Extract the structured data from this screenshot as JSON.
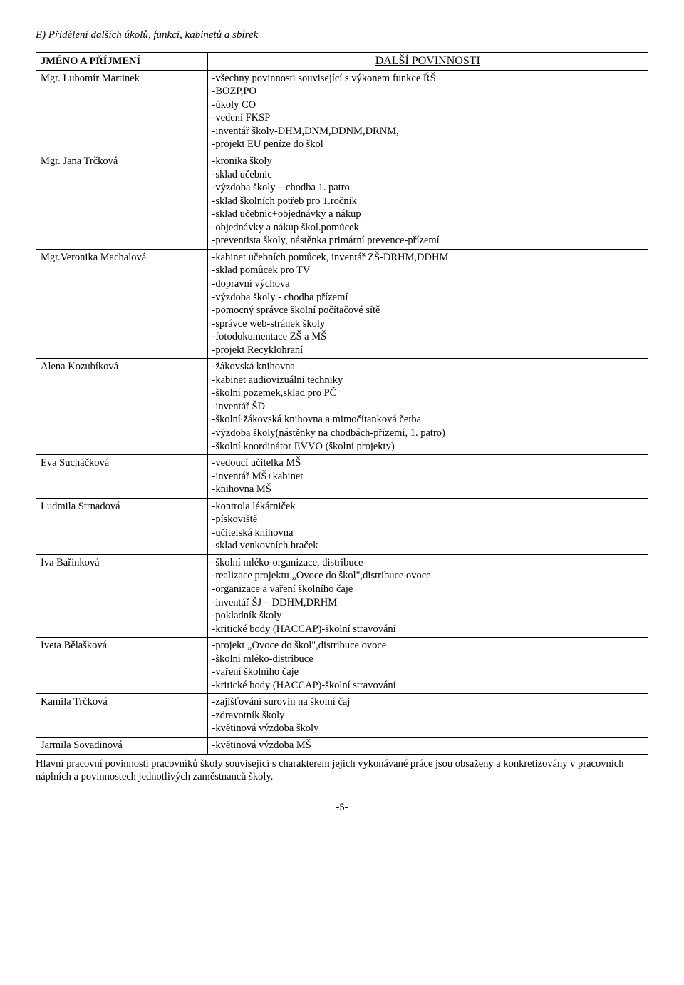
{
  "section_title": "E) Přidělení dalších úkolů, funkcí, kabinetů a sbírek",
  "columns": {
    "name": "JMÉNO A PŘÍJMENÍ",
    "duties": "DALŠÍ POVINNOSTI"
  },
  "rows": [
    {
      "name": "Mgr. Lubomír Martinek",
      "duties": [
        "-všechny povinnosti související s výkonem funkce ŘŠ",
        "-BOZP,PO",
        "-úkoly CO",
        "-vedení FKSP",
        "-inventář školy-DHM,DNM,DDNM,DRNM,",
        "-projekt EU peníze do škol"
      ]
    },
    {
      "name": "Mgr. Jana Trčková",
      "duties": [
        "-kronika školy",
        "-sklad učebnic",
        "-výzdoba školy – chodba 1. patro",
        "-sklad školních potřeb pro 1.ročník",
        "-sklad učebnic+objednávky a nákup",
        "-objednávky a nákup škol.pomůcek",
        "-preventista školy, nástěnka primární prevence-přízemí"
      ]
    },
    {
      "name": "Mgr.Veronika Machalová",
      "duties": [
        "-kabinet učebních pomůcek, inventář ZŠ-DRHM,DDHM",
        "-sklad pomůcek pro TV",
        "-dopravní výchova",
        "-výzdoba školy - chodba přízemí",
        "-pomocný správce školní počítačové sítě",
        "-správce web-stránek školy",
        "-fotodokumentace ZŠ a MŠ",
        "-projekt Recyklohraní"
      ]
    },
    {
      "name": "Alena Kozubíková",
      "duties": [
        "-žákovská knihovna",
        "-kabinet audiovizuální techniky",
        "-školní pozemek,sklad pro PČ",
        "-inventář ŠD",
        "-školní žákovská knihovna a mimočítanková četba",
        "-výzdoba školy(nástěnky na chodbách-přízemí, 1. patro)",
        "-školní koordinátor EVVO (školní projekty)"
      ]
    },
    {
      "name": "Eva Sucháčková",
      "duties": [
        "-vedoucí učitelka MŠ",
        "-inventář MŠ+kabinet",
        "-knihovna MŠ"
      ]
    },
    {
      "name": "Ludmila Strnadová",
      "duties": [
        "-kontrola lékárniček",
        "-pískoviště",
        "-učitelská knihovna",
        "-sklad venkovních hraček"
      ]
    },
    {
      "name": "Iva Bařinková",
      "duties": [
        "-školní mléko-organizace, distribuce",
        "-realizace projektu „Ovoce do škol\",distribuce ovoce",
        "-organizace a vaření školního čaje",
        "-inventář ŠJ – DDHM,DRHM",
        "-pokladník školy",
        "-kritické body (HACCAP)-školní stravování"
      ]
    },
    {
      "name": "Iveta Bělašková",
      "duties": [
        "-projekt „Ovoce do škol\",distribuce ovoce",
        "-školní mléko-distribuce",
        "-vaření školního čaje",
        "-kritické body (HACCAP)-školní stravování"
      ]
    },
    {
      "name": "Kamila Trčková",
      "duties": [
        "-zajišťování surovin na školní čaj",
        "-zdravotník školy",
        "-květinová výzdoba školy"
      ]
    },
    {
      "name": "Jarmila Sovadinová",
      "duties": [
        "-květinová výzdoba MŠ"
      ]
    }
  ],
  "footnote": "Hlavní pracovní povinnosti pracovníků školy související s charakterem jejich vykonávané práce jsou obsaženy a konkretizovány v pracovních náplních a povinnostech jednotlivých zaměstnanců školy.",
  "page_number": "-5-"
}
